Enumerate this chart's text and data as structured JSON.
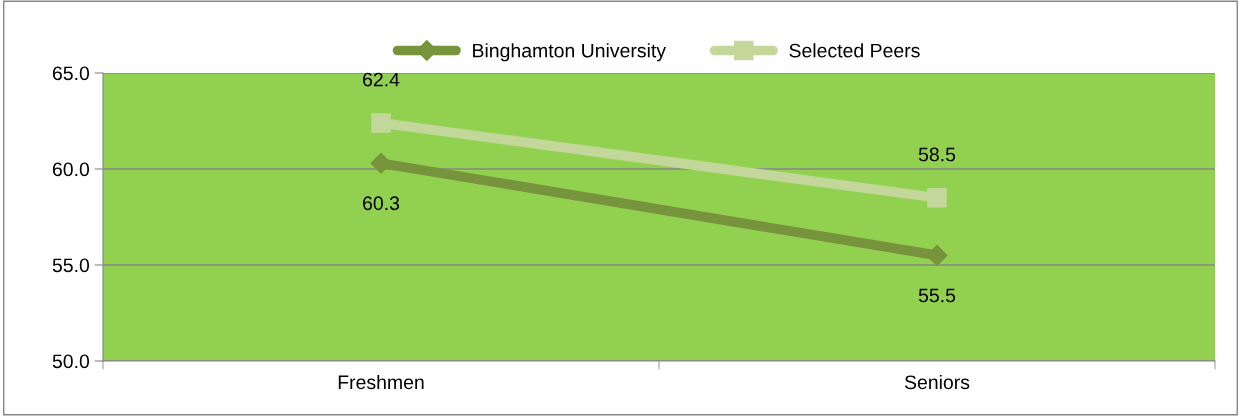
{
  "chart_data": {
    "type": "line",
    "categories": [
      "Freshmen",
      "Seniors"
    ],
    "series": [
      {
        "name": "Binghamton University",
        "color": "#77933c",
        "values": [
          60.3,
          55.5
        ],
        "marker": "diamond"
      },
      {
        "name": "Selected Peers",
        "color": "#c4d79b",
        "values": [
          62.4,
          58.5
        ],
        "marker": "square"
      }
    ],
    "ylim": [
      50,
      65
    ],
    "yticks": [
      {
        "value": 50,
        "label": "50.0"
      },
      {
        "value": 55,
        "label": "55.0"
      },
      {
        "value": 60,
        "label": "60.0"
      },
      {
        "value": 65,
        "label": "65.0"
      }
    ],
    "grid": "y",
    "legend": "top",
    "data_labels": true
  }
}
